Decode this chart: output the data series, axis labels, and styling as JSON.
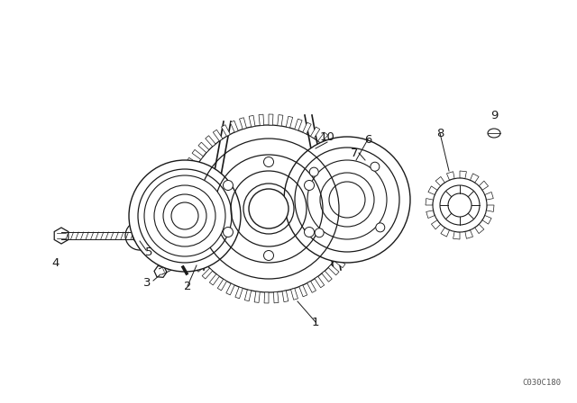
{
  "bg_color": "#ffffff",
  "line_color": "#1a1a1a",
  "fig_width": 6.4,
  "fig_height": 4.48,
  "dpi": 100,
  "watermark": "C030C180"
}
